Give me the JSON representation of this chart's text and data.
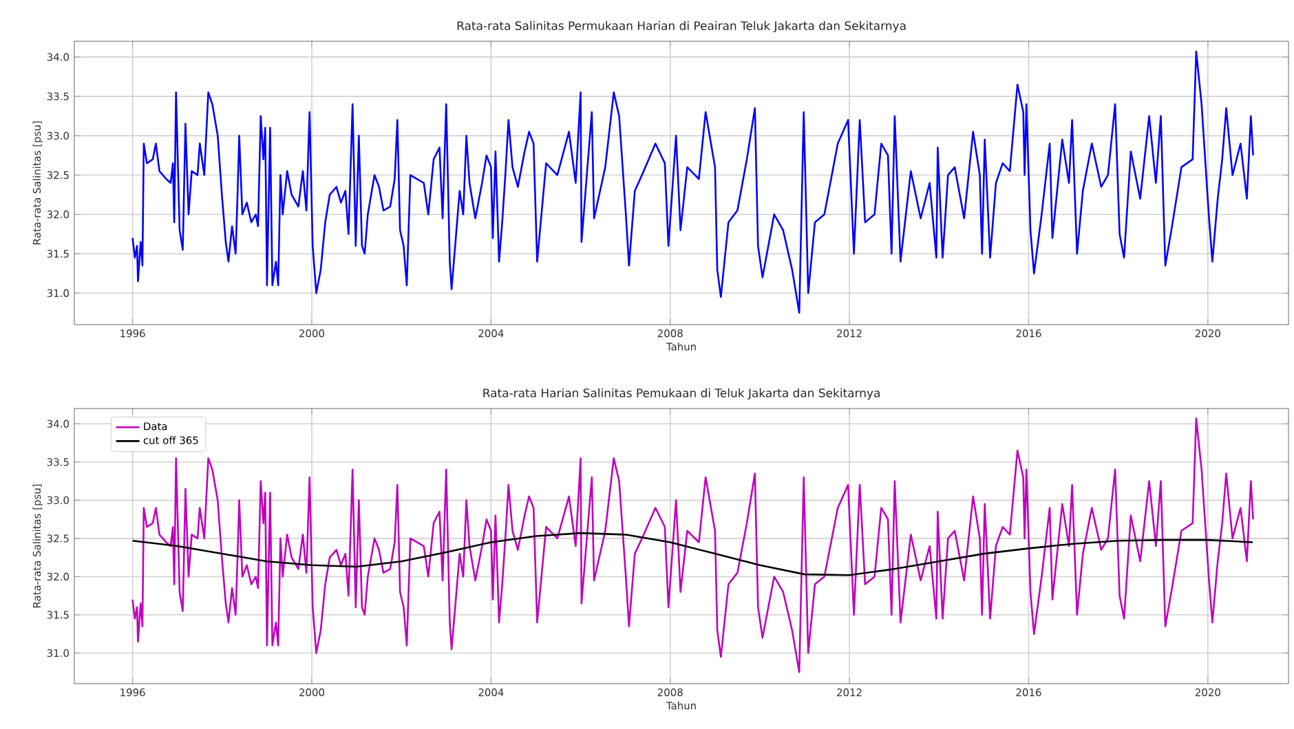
{
  "chart_data": [
    {
      "type": "line",
      "title": "Rata-rata Salinitas Permukaan Harian di Peairan Teluk Jakarta dan Sekitarnya",
      "xlabel": "Tahun",
      "ylabel": "Rata-rata Salinitas [psu]",
      "xlim": [
        1994.7,
        2021.8
      ],
      "ylim": [
        30.6,
        34.2
      ],
      "xticks": [
        1996,
        2000,
        2004,
        2008,
        2012,
        2016,
        2020
      ],
      "yticks": [
        {
          "value": 31,
          "label": "31.0"
        },
        {
          "value": 31.5,
          "label": "31.5"
        },
        {
          "value": 32,
          "label": "32.0"
        },
        {
          "value": 32.5,
          "label": "32.5"
        },
        {
          "value": 33,
          "label": "33.0"
        },
        {
          "value": 33.5,
          "label": "33.5"
        },
        {
          "value": 34,
          "label": "34.0"
        }
      ],
      "grid": true,
      "series": [
        {
          "color": "#0000ff",
          "x": [
            1996.0,
            1996.05,
            1996.1,
            1996.12,
            1996.18,
            1996.22,
            1996.25,
            1996.32,
            1996.45,
            1996.52,
            1996.6,
            1996.75,
            1996.85,
            1996.9,
            1996.93,
            1996.97,
            1997.05,
            1997.12,
            1997.18,
            1997.25,
            1997.32,
            1997.45,
            1997.5,
            1997.6,
            1997.69,
            1997.78,
            1997.9,
            1998.0,
            1998.08,
            1998.14,
            1998.22,
            1998.3,
            1998.34,
            1998.38,
            1998.45,
            1998.55,
            1998.65,
            1998.75,
            1998.8,
            1998.86,
            1998.92,
            1998.96,
            1999.0,
            1999.07,
            1999.12,
            1999.2,
            1999.25,
            1999.3,
            1999.35,
            1999.45,
            1999.55,
            1999.7,
            1999.8,
            1999.88,
            1999.95,
            2000.02,
            2000.1,
            2000.2,
            2000.3,
            2000.4,
            2000.55,
            2000.65,
            2000.75,
            2000.82,
            2000.91,
            2000.98,
            2001.05,
            2001.12,
            2001.18,
            2001.25,
            2001.4,
            2001.5,
            2001.6,
            2001.75,
            2001.85,
            2001.91,
            2001.97,
            2002.05,
            2002.12,
            2002.2,
            2002.35,
            2002.5,
            2002.6,
            2002.72,
            2002.85,
            2002.92,
            2003.0,
            2003.08,
            2003.12,
            2003.2,
            2003.3,
            2003.38,
            2003.45,
            2003.52,
            2003.65,
            2003.8,
            2003.9,
            2004.0,
            2004.04,
            2004.1,
            2004.18,
            2004.25,
            2004.32,
            2004.39,
            2004.48,
            2004.6,
            2004.75,
            2004.85,
            2004.95,
            2005.03,
            2005.23,
            2005.48,
            2005.74,
            2005.89,
            2006.0,
            2006.02,
            2006.25,
            2006.3,
            2006.55,
            2006.74,
            2006.86,
            2007.01,
            2007.08,
            2007.21,
            2007.37,
            2007.67,
            2007.88,
            2007.96,
            2008.13,
            2008.23,
            2008.38,
            2008.64,
            2008.79,
            2009.0,
            2009.05,
            2009.13,
            2009.3,
            2009.5,
            2009.71,
            2009.89,
            2009.96,
            2010.06,
            2010.32,
            2010.52,
            2010.72,
            2010.88,
            2010.98,
            2011.08,
            2011.23,
            2011.44,
            2011.74,
            2011.97,
            2012.1,
            2012.23,
            2012.35,
            2012.56,
            2012.71,
            2012.86,
            2012.94,
            2013.01,
            2013.14,
            2013.37,
            2013.59,
            2013.79,
            2013.94,
            2013.97,
            2014.08,
            2014.2,
            2014.35,
            2014.56,
            2014.76,
            2014.91,
            2014.96,
            2015.02,
            2015.14,
            2015.27,
            2015.42,
            2015.58,
            2015.75,
            2015.88,
            2015.91,
            2015.95,
            2016.04,
            2016.12,
            2016.29,
            2016.47,
            2016.53,
            2016.75,
            2016.9,
            2016.97,
            2017.08,
            2017.21,
            2017.41,
            2017.62,
            2017.77,
            2017.93,
            2018.03,
            2018.13,
            2018.28,
            2018.49,
            2018.69,
            2018.84,
            2018.95,
            2019.05,
            2019.2,
            2019.41,
            2019.66,
            2019.74,
            2019.86,
            2020.02,
            2020.1,
            2020.22,
            2020.32,
            2020.41,
            2020.55,
            2020.73,
            2020.87,
            2020.96,
            2021.01
          ],
          "values": [
            31.7,
            31.45,
            31.6,
            31.15,
            31.65,
            31.35,
            32.9,
            32.65,
            32.7,
            32.9,
            32.55,
            32.45,
            32.4,
            32.65,
            31.9,
            33.55,
            31.8,
            31.55,
            33.15,
            32.0,
            32.55,
            32.5,
            32.9,
            32.5,
            33.55,
            33.4,
            33.0,
            32.2,
            31.65,
            31.4,
            31.85,
            31.5,
            32.2,
            33.0,
            32.0,
            32.15,
            31.9,
            32.0,
            31.85,
            33.25,
            32.7,
            33.1,
            31.1,
            33.1,
            31.1,
            31.4,
            31.1,
            32.5,
            32.0,
            32.55,
            32.25,
            32.1,
            32.55,
            32.05,
            33.3,
            31.6,
            31.0,
            31.3,
            31.9,
            32.25,
            32.35,
            32.15,
            32.3,
            31.75,
            33.4,
            31.6,
            33.0,
            31.6,
            31.5,
            32.0,
            32.5,
            32.35,
            32.05,
            32.1,
            32.45,
            33.2,
            31.8,
            31.6,
            31.1,
            32.5,
            32.45,
            32.4,
            32.0,
            32.7,
            32.85,
            31.95,
            33.4,
            31.4,
            31.05,
            31.6,
            32.3,
            32.0,
            33.0,
            32.4,
            31.95,
            32.4,
            32.75,
            32.6,
            31.7,
            32.8,
            31.4,
            31.9,
            32.5,
            33.2,
            32.6,
            32.35,
            32.8,
            33.05,
            32.9,
            31.4,
            32.65,
            32.5,
            33.05,
            32.4,
            33.55,
            31.65,
            33.3,
            31.95,
            32.6,
            33.55,
            33.25,
            32.0,
            31.35,
            32.3,
            32.5,
            32.9,
            32.65,
            31.6,
            33.0,
            31.8,
            32.6,
            32.45,
            33.3,
            32.6,
            31.3,
            30.95,
            31.9,
            32.05,
            32.7,
            33.35,
            31.6,
            31.2,
            32.0,
            31.8,
            31.3,
            30.75,
            33.3,
            31.0,
            31.9,
            32.0,
            32.9,
            33.2,
            31.5,
            33.2,
            31.9,
            32.0,
            32.9,
            32.75,
            31.5,
            33.25,
            31.4,
            32.55,
            31.95,
            32.4,
            31.45,
            32.85,
            31.45,
            32.5,
            32.6,
            31.95,
            33.05,
            32.5,
            31.5,
            32.95,
            31.45,
            32.4,
            32.65,
            32.55,
            33.65,
            33.3,
            32.5,
            33.4,
            31.8,
            31.25,
            32.0,
            32.9,
            31.7,
            32.95,
            32.4,
            33.2,
            31.5,
            32.3,
            32.9,
            32.35,
            32.5,
            33.4,
            31.75,
            31.45,
            32.8,
            32.2,
            33.25,
            32.4,
            33.25,
            31.35,
            31.85,
            32.6,
            32.7,
            34.07,
            33.4,
            32.0,
            31.4,
            32.2,
            32.7,
            33.35,
            32.5,
            32.9,
            32.2,
            33.25,
            32.75
          ]
        }
      ]
    },
    {
      "type": "line",
      "title": "Rata-rata Harian Salinitas Pemukaan di Teluk Jakarta dan Sekitarnya",
      "xlabel": "Tahun",
      "ylabel": "Rata-rata Salinitas [psu]",
      "xlim": [
        1994.7,
        2021.8
      ],
      "ylim": [
        30.6,
        34.2
      ],
      "xticks": [
        1996,
        2000,
        2004,
        2008,
        2012,
        2016,
        2020
      ],
      "yticks": [
        {
          "value": 31,
          "label": "31.0"
        },
        {
          "value": 31.5,
          "label": "31.5"
        },
        {
          "value": 32,
          "label": "32.0"
        },
        {
          "value": 32.5,
          "label": "32.5"
        },
        {
          "value": 33,
          "label": "33.0"
        },
        {
          "value": 33.5,
          "label": "33.5"
        },
        {
          "value": 34,
          "label": "34.0"
        }
      ],
      "grid": true,
      "legend": "top left",
      "series": [
        {
          "name": "Data",
          "color": "#bf00bf",
          "x": [
            1996.0,
            1996.05,
            1996.1,
            1996.12,
            1996.18,
            1996.22,
            1996.25,
            1996.32,
            1996.45,
            1996.52,
            1996.6,
            1996.75,
            1996.85,
            1996.9,
            1996.93,
            1996.97,
            1997.05,
            1997.12,
            1997.18,
            1997.25,
            1997.32,
            1997.45,
            1997.5,
            1997.6,
            1997.69,
            1997.78,
            1997.9,
            1998.0,
            1998.08,
            1998.14,
            1998.22,
            1998.3,
            1998.34,
            1998.38,
            1998.45,
            1998.55,
            1998.65,
            1998.75,
            1998.8,
            1998.86,
            1998.92,
            1998.96,
            1999.0,
            1999.07,
            1999.12,
            1999.2,
            1999.25,
            1999.3,
            1999.35,
            1999.45,
            1999.55,
            1999.7,
            1999.8,
            1999.88,
            1999.95,
            2000.02,
            2000.1,
            2000.2,
            2000.3,
            2000.4,
            2000.55,
            2000.65,
            2000.75,
            2000.82,
            2000.91,
            2000.98,
            2001.05,
            2001.12,
            2001.18,
            2001.25,
            2001.4,
            2001.5,
            2001.6,
            2001.75,
            2001.85,
            2001.91,
            2001.97,
            2002.05,
            2002.12,
            2002.2,
            2002.35,
            2002.5,
            2002.6,
            2002.72,
            2002.85,
            2002.92,
            2003.0,
            2003.08,
            2003.12,
            2003.2,
            2003.3,
            2003.38,
            2003.45,
            2003.52,
            2003.65,
            2003.8,
            2003.9,
            2004.0,
            2004.04,
            2004.1,
            2004.18,
            2004.25,
            2004.32,
            2004.39,
            2004.48,
            2004.6,
            2004.75,
            2004.85,
            2004.95,
            2005.03,
            2005.23,
            2005.48,
            2005.74,
            2005.89,
            2006.0,
            2006.02,
            2006.25,
            2006.3,
            2006.55,
            2006.74,
            2006.86,
            2007.01,
            2007.08,
            2007.21,
            2007.37,
            2007.67,
            2007.88,
            2007.96,
            2008.13,
            2008.23,
            2008.38,
            2008.64,
            2008.79,
            2009.0,
            2009.05,
            2009.13,
            2009.3,
            2009.5,
            2009.71,
            2009.89,
            2009.96,
            2010.06,
            2010.32,
            2010.52,
            2010.72,
            2010.88,
            2010.98,
            2011.08,
            2011.23,
            2011.44,
            2011.74,
            2011.97,
            2012.1,
            2012.23,
            2012.35,
            2012.56,
            2012.71,
            2012.86,
            2012.94,
            2013.01,
            2013.14,
            2013.37,
            2013.59,
            2013.79,
            2013.94,
            2013.97,
            2014.08,
            2014.2,
            2014.35,
            2014.56,
            2014.76,
            2014.91,
            2014.96,
            2015.02,
            2015.14,
            2015.27,
            2015.42,
            2015.58,
            2015.75,
            2015.88,
            2015.91,
            2015.95,
            2016.04,
            2016.12,
            2016.29,
            2016.47,
            2016.53,
            2016.75,
            2016.9,
            2016.97,
            2017.08,
            2017.21,
            2017.41,
            2017.62,
            2017.77,
            2017.93,
            2018.03,
            2018.13,
            2018.28,
            2018.49,
            2018.69,
            2018.84,
            2018.95,
            2019.05,
            2019.2,
            2019.41,
            2019.66,
            2019.74,
            2019.86,
            2020.02,
            2020.1,
            2020.22,
            2020.32,
            2020.41,
            2020.55,
            2020.73,
            2020.87,
            2020.96,
            2021.01
          ],
          "values": [
            31.7,
            31.45,
            31.6,
            31.15,
            31.65,
            31.35,
            32.9,
            32.65,
            32.7,
            32.9,
            32.55,
            32.45,
            32.4,
            32.65,
            31.9,
            33.55,
            31.8,
            31.55,
            33.15,
            32.0,
            32.55,
            32.5,
            32.9,
            32.5,
            33.55,
            33.4,
            33.0,
            32.2,
            31.65,
            31.4,
            31.85,
            31.5,
            32.2,
            33.0,
            32.0,
            32.15,
            31.9,
            32.0,
            31.85,
            33.25,
            32.7,
            33.1,
            31.1,
            33.1,
            31.1,
            31.4,
            31.1,
            32.5,
            32.0,
            32.55,
            32.25,
            32.1,
            32.55,
            32.05,
            33.3,
            31.6,
            31.0,
            31.3,
            31.9,
            32.25,
            32.35,
            32.15,
            32.3,
            31.75,
            33.4,
            31.6,
            33.0,
            31.6,
            31.5,
            32.0,
            32.5,
            32.35,
            32.05,
            32.1,
            32.45,
            33.2,
            31.8,
            31.6,
            31.1,
            32.5,
            32.45,
            32.4,
            32.0,
            32.7,
            32.85,
            31.95,
            33.4,
            31.4,
            31.05,
            31.6,
            32.3,
            32.0,
            33.0,
            32.4,
            31.95,
            32.4,
            32.75,
            32.6,
            31.7,
            32.8,
            31.4,
            31.9,
            32.5,
            33.2,
            32.6,
            32.35,
            32.8,
            33.05,
            32.9,
            31.4,
            32.65,
            32.5,
            33.05,
            32.4,
            33.55,
            31.65,
            33.3,
            31.95,
            32.6,
            33.55,
            33.25,
            32.0,
            31.35,
            32.3,
            32.5,
            32.9,
            32.65,
            31.6,
            33.0,
            31.8,
            32.6,
            32.45,
            33.3,
            32.6,
            31.3,
            30.95,
            31.9,
            32.05,
            32.7,
            33.35,
            31.6,
            31.2,
            32.0,
            31.8,
            31.3,
            30.75,
            33.3,
            31.0,
            31.9,
            32.0,
            32.9,
            33.2,
            31.5,
            33.2,
            31.9,
            32.0,
            32.9,
            32.75,
            31.5,
            33.25,
            31.4,
            32.55,
            31.95,
            32.4,
            31.45,
            32.85,
            31.45,
            32.5,
            32.6,
            31.95,
            33.05,
            32.5,
            31.5,
            32.95,
            31.45,
            32.4,
            32.65,
            32.55,
            33.65,
            33.3,
            32.5,
            33.4,
            31.8,
            31.25,
            32.0,
            32.9,
            31.7,
            32.95,
            32.4,
            33.2,
            31.5,
            32.3,
            32.9,
            32.35,
            32.5,
            33.4,
            31.75,
            31.45,
            32.8,
            32.2,
            33.25,
            32.4,
            33.25,
            31.35,
            31.85,
            32.6,
            32.7,
            34.07,
            33.4,
            32.0,
            31.4,
            32.2,
            32.7,
            33.35,
            32.5,
            32.9,
            32.2,
            33.25,
            32.75
          ]
        },
        {
          "name": "cut off 365",
          "color": "#000000",
          "x": [
            1996,
            1997,
            1998,
            1999,
            2000,
            2001,
            2002,
            2003,
            2004,
            2005,
            2006,
            2007,
            2008,
            2009,
            2010,
            2011,
            2012,
            2013,
            2014,
            2015,
            2016,
            2017,
            2018,
            2019,
            2020,
            2021
          ],
          "values": [
            32.47,
            32.4,
            32.3,
            32.2,
            32.15,
            32.13,
            32.2,
            32.32,
            32.45,
            32.53,
            32.57,
            32.55,
            32.45,
            32.3,
            32.15,
            32.03,
            32.02,
            32.1,
            32.2,
            32.3,
            32.37,
            32.43,
            32.47,
            32.48,
            32.48,
            32.45
          ]
        }
      ]
    }
  ]
}
